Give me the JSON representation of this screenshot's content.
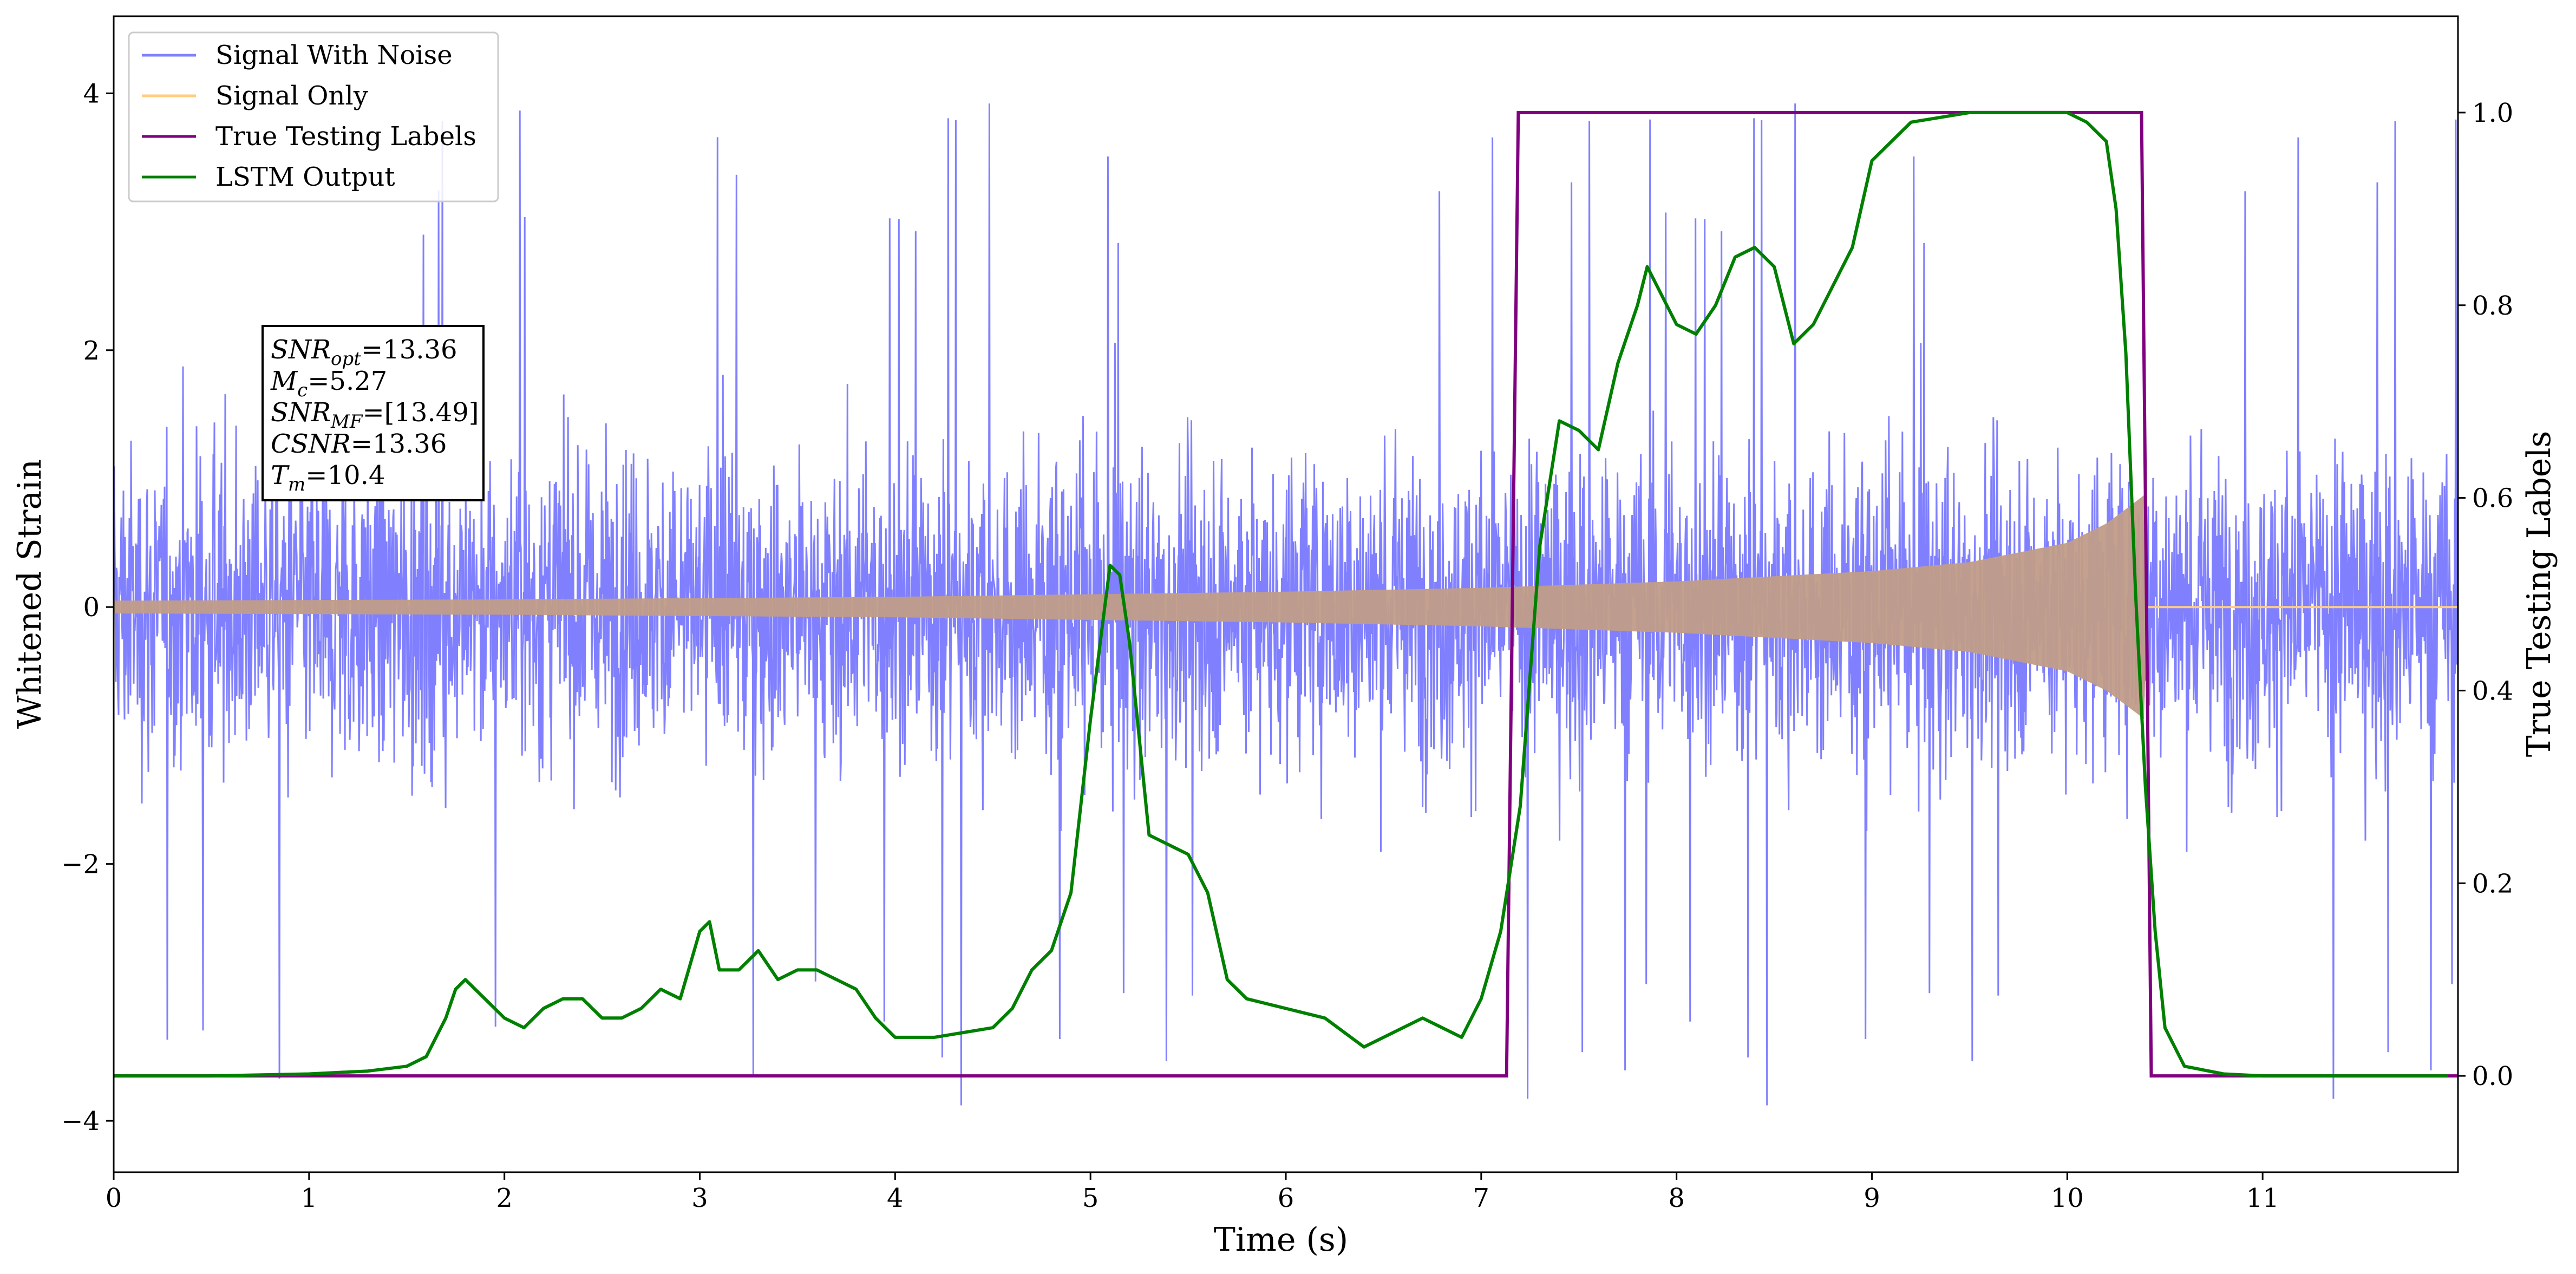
{
  "chart_data": {
    "type": "line",
    "xlabel": "Time (s)",
    "ylabel_left": "Whitened Strain",
    "ylabel_right": "True Testing Labels",
    "xlim": [
      0,
      12
    ],
    "ylim_left": [
      -4.4,
      4.6
    ],
    "ylim_right": [
      -0.1,
      1.1
    ],
    "grid": false,
    "legend_placement": "top-left",
    "x_ticks": [
      0,
      1,
      2,
      3,
      4,
      5,
      6,
      7,
      8,
      9,
      10,
      11
    ],
    "x_tick_labels": [
      "0",
      "1",
      "2",
      "3",
      "4",
      "5",
      "6",
      "7",
      "8",
      "9",
      "10",
      "11"
    ],
    "y_ticks_left": [
      -4,
      -2,
      0,
      2,
      4
    ],
    "y_tick_labels_left": [
      "−4",
      "−2",
      "0",
      "2",
      "4"
    ],
    "y_ticks_right": [
      0.0,
      0.2,
      0.4,
      0.6,
      0.8,
      1.0
    ],
    "y_tick_labels_right": [
      "0.0",
      "0.2",
      "0.4",
      "0.6",
      "0.8",
      "1.0"
    ],
    "colors": {
      "signal_with_noise": "#8080ff",
      "signal_only": "#ffcc80",
      "true_labels": "#800080",
      "lstm_output": "#008000"
    },
    "series": [
      {
        "name": "Signal With Noise",
        "axis": "left",
        "description_values": {
          "kind": "noise",
          "mean": 0,
          "typical_envelope": 2.4,
          "spike_max": 4.1,
          "spike_min": -4.0,
          "x_range": [
            0,
            12
          ]
        }
      },
      {
        "name": "Signal Only",
        "axis": "left",
        "chirp_envelope": {
          "x": [
            0,
            2,
            4,
            6,
            7,
            8,
            9,
            9.5,
            10,
            10.2,
            10.35,
            10.4,
            10.41,
            12
          ],
          "amplitude": [
            0.05,
            0.06,
            0.08,
            0.12,
            0.15,
            0.2,
            0.28,
            0.35,
            0.5,
            0.65,
            0.82,
            0.88,
            0.0,
            0.0
          ]
        }
      },
      {
        "name": "True Testing Labels",
        "axis": "right",
        "x": [
          0,
          7.13,
          7.19,
          10.38,
          10.43,
          12
        ],
        "y": [
          0,
          0,
          1,
          1,
          0,
          0
        ]
      },
      {
        "name": "LSTM Output",
        "axis": "right",
        "x": [
          0,
          0.5,
          1.0,
          1.3,
          1.5,
          1.6,
          1.7,
          1.75,
          1.8,
          1.9,
          2.0,
          2.1,
          2.2,
          2.3,
          2.4,
          2.5,
          2.6,
          2.7,
          2.8,
          2.9,
          3.0,
          3.05,
          3.1,
          3.2,
          3.3,
          3.4,
          3.5,
          3.6,
          3.7,
          3.8,
          3.9,
          4.0,
          4.2,
          4.5,
          4.6,
          4.7,
          4.8,
          4.9,
          5.0,
          5.1,
          5.15,
          5.2,
          5.3,
          5.4,
          5.5,
          5.6,
          5.7,
          5.8,
          6.0,
          6.2,
          6.4,
          6.5,
          6.7,
          6.9,
          7.0,
          7.1,
          7.2,
          7.3,
          7.4,
          7.5,
          7.6,
          7.7,
          7.8,
          7.85,
          7.9,
          8.0,
          8.1,
          8.2,
          8.3,
          8.4,
          8.5,
          8.6,
          8.7,
          8.8,
          8.9,
          9.0,
          9.2,
          9.5,
          10.0,
          10.1,
          10.2,
          10.25,
          10.3,
          10.35,
          10.4,
          10.45,
          10.5,
          10.6,
          10.8,
          11.0,
          11.5,
          11.95
        ],
        "y": [
          0.0,
          0.0,
          0.002,
          0.005,
          0.01,
          0.02,
          0.06,
          0.09,
          0.1,
          0.08,
          0.06,
          0.05,
          0.07,
          0.08,
          0.08,
          0.06,
          0.06,
          0.07,
          0.09,
          0.08,
          0.15,
          0.16,
          0.11,
          0.11,
          0.13,
          0.1,
          0.11,
          0.11,
          0.1,
          0.09,
          0.06,
          0.04,
          0.04,
          0.05,
          0.07,
          0.11,
          0.13,
          0.19,
          0.37,
          0.53,
          0.52,
          0.45,
          0.25,
          0.24,
          0.23,
          0.19,
          0.1,
          0.08,
          0.07,
          0.06,
          0.03,
          0.04,
          0.06,
          0.04,
          0.08,
          0.15,
          0.28,
          0.55,
          0.68,
          0.67,
          0.65,
          0.74,
          0.8,
          0.84,
          0.82,
          0.78,
          0.77,
          0.8,
          0.85,
          0.86,
          0.84,
          0.76,
          0.78,
          0.82,
          0.86,
          0.95,
          0.99,
          1.0,
          1.0,
          0.99,
          0.97,
          0.9,
          0.75,
          0.5,
          0.3,
          0.15,
          0.05,
          0.01,
          0.002,
          0.0,
          0.0,
          0.0
        ]
      }
    ],
    "annotation": {
      "lines": [
        {
          "sym": "SNR",
          "sub": "opt",
          "val": "=13.36"
        },
        {
          "sym": "M",
          "sub": "c",
          "val": "=5.27"
        },
        {
          "sym": "SNR",
          "sub": "MF",
          "val": "=[13.49]"
        },
        {
          "sym": "CSNR",
          "sub": "",
          "val": "=13.36"
        },
        {
          "sym": "T",
          "sub": "m",
          "val": "=10.4"
        }
      ]
    }
  }
}
